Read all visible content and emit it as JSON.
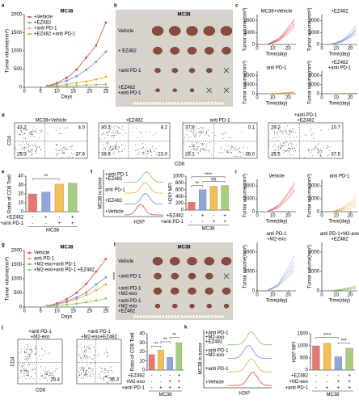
{
  "panel_labels": [
    "a",
    "b",
    "c",
    "d",
    "e",
    "f",
    "g",
    "h",
    "i",
    "j",
    "k"
  ],
  "chart_data": [
    {
      "type": "line",
      "title": "MC38",
      "xlabel": "Days",
      "ylabel": "Tumor volume(mm³)",
      "x": [
        7,
        10,
        13,
        16,
        19,
        22,
        25
      ],
      "xlim": [
        0,
        26
      ],
      "xticks": [
        0,
        5,
        10,
        15,
        20,
        25
      ],
      "ylim": [
        0,
        2000
      ],
      "yticks": [
        0,
        500,
        1000,
        1500,
        2000
      ],
      "markers": true,
      "legend": "upper left",
      "series": [
        {
          "name": "+Vehicle",
          "color": "#e8413c",
          "values": [
            40,
            120,
            260,
            480,
            820,
            1150,
            1780
          ]
        },
        {
          "name": "+EZ482",
          "color": "#6f8fd8",
          "values": [
            30,
            90,
            180,
            300,
            480,
            700,
            980
          ]
        },
        {
          "name": "+anti PD-1",
          "color": "#f2a531",
          "values": [
            25,
            50,
            80,
            120,
            160,
            220,
            290
          ]
        },
        {
          "name": "+EZ482 +anti PD-1",
          "color": "#8cc460",
          "values": [
            20,
            30,
            40,
            50,
            60,
            70,
            80
          ]
        }
      ]
    },
    {
      "type": "line",
      "title": "MC38+Vehicle",
      "title_color": "#e8413c",
      "color": "#e8413c",
      "xlabel": "Time(day)",
      "ylabel": "Tumor volume(mm³)",
      "x": [
        7,
        10,
        14,
        17,
        21,
        24
      ],
      "xlim": [
        0,
        25
      ],
      "xticks": [
        0,
        10,
        20
      ],
      "ylim": [
        0,
        2500
      ],
      "yticks": [
        0,
        1000,
        2000
      ],
      "series": [
        {
          "values": [
            50,
            180,
            450,
            850,
            1500,
            2200
          ]
        },
        {
          "values": [
            40,
            150,
            380,
            700,
            1250,
            1800
          ]
        },
        {
          "values": [
            60,
            220,
            520,
            950,
            1600,
            2000
          ]
        },
        {
          "values": [
            30,
            120,
            300,
            600,
            1000,
            1500
          ]
        },
        {
          "values": [
            45,
            160,
            400,
            750,
            1300,
            1700
          ]
        }
      ]
    },
    {
      "type": "line",
      "title": "+EZ482",
      "title_color": "#6f8fd8",
      "color": "#6f8fd8",
      "xlabel": "Time(day)",
      "ylabel": "Tumor volume(mm³)",
      "x": [
        7,
        10,
        14,
        17,
        21,
        24
      ],
      "xlim": [
        0,
        25
      ],
      "xticks": [
        0,
        10,
        20
      ],
      "ylim": [
        0,
        2500
      ],
      "yticks": [
        0,
        1000,
        2000
      ],
      "series": [
        {
          "values": [
            40,
            120,
            300,
            550,
            900,
            1300
          ]
        },
        {
          "values": [
            30,
            100,
            250,
            450,
            750,
            1100
          ]
        },
        {
          "values": [
            50,
            150,
            350,
            650,
            1100,
            1600
          ]
        },
        {
          "values": [
            35,
            90,
            200,
            400,
            650,
            900
          ]
        },
        {
          "values": [
            45,
            130,
            280,
            500,
            850,
            1200
          ]
        }
      ]
    },
    {
      "type": "line",
      "title": "anti PD-1",
      "title_color": "#f2a531",
      "color": "#f2a531",
      "xlabel": "Time(day)",
      "ylabel": "Tumor volume(mm³)",
      "x": [
        7,
        10,
        14,
        17,
        21,
        24
      ],
      "xlim": [
        0,
        25
      ],
      "xticks": [
        0,
        10,
        20
      ],
      "ylim": [
        0,
        2500
      ],
      "yticks": [
        0,
        1000,
        2000
      ],
      "series": [
        {
          "values": [
            20,
            40,
            60,
            90,
            120,
            160
          ]
        },
        {
          "values": [
            15,
            30,
            50,
            70,
            100,
            140
          ]
        },
        {
          "values": [
            25,
            45,
            70,
            110,
            150,
            200
          ]
        },
        {
          "values": [
            20,
            35,
            55,
            80,
            110,
            130
          ]
        }
      ]
    },
    {
      "type": "line",
      "title": [
        "+EZ482",
        "+anti PD-1"
      ],
      "title_color": "#8cc460",
      "color": "#8cc460",
      "xlabel": "Time(day)",
      "ylabel": "Tumor volume(mm³)",
      "x": [
        7,
        10,
        14,
        17,
        21,
        24
      ],
      "xlim": [
        0,
        25
      ],
      "xticks": [
        0,
        10,
        20
      ],
      "ylim": [
        0,
        2500
      ],
      "yticks": [
        0,
        1000,
        2000
      ],
      "series": [
        {
          "values": [
            15,
            25,
            35,
            45,
            55,
            70
          ]
        },
        {
          "values": [
            10,
            20,
            30,
            40,
            50,
            60
          ]
        },
        {
          "values": [
            20,
            30,
            45,
            55,
            65,
            80
          ]
        }
      ]
    },
    {
      "type": "bar",
      "ylabel": "Ratio of CD8 Tcell",
      "values": [
        20,
        22,
        31,
        32
      ],
      "colors": [
        "#e8766f",
        "#8ea6dc",
        "#f5c04e",
        "#a3cf7e"
      ],
      "ylim": [
        0,
        40
      ],
      "yticks": [
        0,
        10,
        20,
        30,
        40
      ],
      "annotations": [
        "**"
      ],
      "conditions": [
        {
          "label": "+EZ482",
          "signs": [
            "-",
            "+",
            "-",
            "+"
          ]
        },
        {
          "label": "+anti PD-1",
          "signs": [
            "-",
            "-",
            "+",
            "+"
          ]
        }
      ],
      "group": "MC38"
    },
    {
      "type": "bar",
      "ylabel": "H2Kᵇ MFI",
      "values": [
        230,
        600,
        700,
        720
      ],
      "colors": [
        "#e8766f",
        "#8ea6dc",
        "#f5c04e",
        "#a3cf7e"
      ],
      "ylim": [
        0,
        1000
      ],
      "yticks": [
        0,
        200,
        400,
        600,
        800,
        1000
      ],
      "annotations": [
        "**",
        "****",
        "ns"
      ],
      "conditions": [
        {
          "label": "+EZ482",
          "signs": [
            "-",
            "+",
            "-",
            "+"
          ]
        },
        {
          "label": "+anti PD-1",
          "signs": [
            "-",
            "-",
            "+",
            "+"
          ]
        }
      ],
      "group": "MC38"
    },
    {
      "type": "line",
      "title": "MC38",
      "xlabel": "Days",
      "ylabel": "Tumor volume(mm³)",
      "x": [
        7,
        10,
        13,
        16,
        19,
        22,
        25
      ],
      "xlim": [
        0,
        26
      ],
      "xticks": [
        0,
        5,
        10,
        15,
        20,
        25
      ],
      "ylim": [
        0,
        2000
      ],
      "yticks": [
        0,
        500,
        1000,
        1500,
        2000
      ],
      "markers": true,
      "legend": "upper left",
      "annotations": [
        "****",
        "***"
      ],
      "series": [
        {
          "name": "Vehicle",
          "color": "#e8413c",
          "values": [
            40,
            130,
            280,
            500,
            820,
            1250,
            1700
          ]
        },
        {
          "name": "anti PD-1",
          "color": "#f2a531",
          "values": [
            35,
            90,
            170,
            280,
            430,
            600,
            800
          ]
        },
        {
          "name": "+M2-exo+anti PD-1",
          "color": "#6f8fd8",
          "values": [
            35,
            100,
            200,
            340,
            520,
            800,
            1050
          ]
        },
        {
          "name": "+M2-exo+anti PD-1 +EZ482",
          "color": "#8cc460",
          "values": [
            25,
            50,
            80,
            120,
            170,
            230,
            300
          ]
        }
      ]
    },
    {
      "type": "line",
      "title": "Vehicle",
      "title_color": "#e8413c",
      "color": "#e8413c",
      "xlabel": "Time(day)",
      "ylabel": "Tumor volume(mm³)",
      "x": [
        7,
        10,
        14,
        17,
        21,
        24
      ],
      "xlim": [
        0,
        25
      ],
      "xticks": [
        0,
        10,
        20
      ],
      "ylim": [
        0,
        2500
      ],
      "yticks": [
        0,
        1000,
        2000
      ],
      "series": [
        {
          "values": [
            50,
            200,
            480,
            900,
            1500,
            2100
          ]
        },
        {
          "values": [
            40,
            160,
            400,
            750,
            1250,
            1800
          ]
        },
        {
          "values": [
            60,
            230,
            550,
            1000,
            1650,
            2300
          ]
        },
        {
          "values": [
            35,
            130,
            320,
            650,
            1100,
            1600
          ]
        }
      ]
    },
    {
      "type": "line",
      "title": "anti PD-1",
      "title_color": "#f2a531",
      "color": "#f2a531",
      "xlabel": "Time(day)",
      "ylabel": "Tumor volume(mm³)",
      "x": [
        7,
        10,
        14,
        17,
        21,
        24
      ],
      "xlim": [
        0,
        25
      ],
      "xticks": [
        0,
        10,
        20
      ],
      "ylim": [
        0,
        2500
      ],
      "yticks": [
        0,
        1000,
        2000
      ],
      "series": [
        {
          "values": [
            30,
            100,
            250,
            500,
            800,
            1200
          ]
        },
        {
          "values": [
            20,
            60,
            150,
            300,
            500,
            700
          ]
        },
        {
          "values": [
            25,
            80,
            200,
            400,
            650,
            900
          ]
        },
        {
          "values": [
            15,
            40,
            90,
            180,
            300,
            450
          ]
        }
      ]
    },
    {
      "type": "line",
      "title": [
        "anti PD-1",
        "+M2-exo"
      ],
      "title_color": "#6f8fd8",
      "color": "#6f8fd8",
      "xlabel": "Time(day)",
      "ylabel": "Tumor volume(mm³)",
      "x": [
        7,
        10,
        14,
        17,
        21,
        24
      ],
      "xlim": [
        0,
        25
      ],
      "xticks": [
        0,
        10,
        20
      ],
      "ylim": [
        0,
        2500
      ],
      "yticks": [
        0,
        1000,
        2000
      ],
      "series": [
        {
          "values": [
            40,
            150,
            350,
            700,
            1100,
            1500
          ]
        },
        {
          "values": [
            30,
            100,
            250,
            500,
            800,
            1100
          ]
        },
        {
          "values": [
            50,
            180,
            400,
            800,
            1300,
            1800
          ]
        },
        {
          "values": [
            35,
            120,
            300,
            600,
            950,
            1300
          ]
        }
      ]
    },
    {
      "type": "line",
      "title": [
        "anti PD-1+M2-exo",
        "+EZ482"
      ],
      "title_color": "#8cc460",
      "color": "#8cc460",
      "xlabel": "Time(day)",
      "ylabel": "Tumor volume(mm³)",
      "x": [
        7,
        10,
        14,
        17,
        21,
        24
      ],
      "xlim": [
        0,
        25
      ],
      "xticks": [
        0,
        10,
        20
      ],
      "ylim": [
        0,
        2500
      ],
      "yticks": [
        0,
        1000,
        2000
      ],
      "series": [
        {
          "values": [
            20,
            40,
            70,
            110,
            160,
            220
          ]
        },
        {
          "values": [
            15,
            30,
            50,
            80,
            120,
            170
          ]
        },
        {
          "values": [
            25,
            50,
            90,
            140,
            200,
            280
          ]
        },
        {
          "values": [
            10,
            25,
            40,
            60,
            90,
            120
          ]
        }
      ]
    },
    {
      "type": "bar",
      "ylabel": "Ratio of CD8 Tcell",
      "values": [
        17,
        22,
        14,
        30
      ],
      "colors": [
        "#e8766f",
        "#f5c04e",
        "#8ea6dc",
        "#a3cf7e"
      ],
      "ylim": [
        0,
        40
      ],
      "yticks": [
        0,
        10,
        20,
        30,
        40
      ],
      "annotations": [
        "**",
        "**",
        "**"
      ],
      "conditions": [
        {
          "label": "+EZ482",
          "signs": [
            "-",
            "-",
            "-",
            "+"
          ]
        },
        {
          "label": "+M2-exo",
          "signs": [
            "-",
            "-",
            "+",
            "+"
          ]
        },
        {
          "label": "+anti PD-1",
          "signs": [
            "-",
            "+",
            "+",
            "+"
          ]
        }
      ],
      "group": "MC38"
    },
    {
      "type": "bar",
      "ylabel": "H2Kᵇ MFI",
      "values": [
        1000,
        1100,
        550,
        900
      ],
      "colors": [
        "#e8766f",
        "#f5c04e",
        "#8ea6dc",
        "#a3cf7e"
      ],
      "ylim": [
        0,
        1500
      ],
      "yticks": [
        0,
        500,
        1000,
        1500
      ],
      "annotations": [
        "****",
        "***"
      ],
      "conditions": [
        {
          "label": "+EZ482",
          "signs": [
            "-",
            "-",
            "-",
            "+"
          ]
        },
        {
          "label": "+M2-exo",
          "signs": [
            "-",
            "-",
            "+",
            "+"
          ]
        },
        {
          "label": "+anti PD-1",
          "signs": [
            "-",
            "+",
            "+",
            "+"
          ]
        }
      ],
      "group": "MC38"
    }
  ],
  "tumor_images": [
    {
      "title": "MC38",
      "rows": [
        [
          "Vehicle"
        ],
        [
          "+ EZ482"
        ],
        [
          "+anti PD-1"
        ],
        [
          "+EZ482",
          "+anti PD-1"
        ]
      ],
      "colors": [
        "#e8413c",
        "#6f8fd8",
        "#f2a531",
        "#8cc460"
      ]
    },
    {
      "title": "MC38",
      "rows": [
        [
          "Vehicle"
        ],
        [
          "+anti PD-1"
        ],
        [
          "+anti PD-1",
          "+M2-exo"
        ],
        [
          "+anti PD-1",
          "+M2-exo",
          "+EZ482"
        ]
      ],
      "colors": [
        "#e8413c",
        "#f2a531",
        "#6f8fd8",
        "#8cc460"
      ]
    }
  ],
  "flow_plots": [
    {
      "xlabel": "CD8",
      "ylabel": "CD4",
      "plots": [
        {
          "title": [
            "MC38+Vehicle"
          ],
          "color": "#e8413c",
          "quadrants": {
            "top_left": "43.2",
            "top_right": "4.0",
            "bottom_left": "25.3",
            "bottom_right": "27.6"
          }
        },
        {
          "title": [
            "+EZ482"
          ],
          "color": "#6f8fd8",
          "quadrants": {
            "top_left": "30.2",
            "top_right": "8.2",
            "bottom_left": "38.6",
            "bottom_right": "23.0"
          }
        },
        {
          "title": [
            "anti PD-1"
          ],
          "color": "#f2a531",
          "quadrants": {
            "top_left": "37.8",
            "top_right": "0.1",
            "bottom_left": "23.1",
            "bottom_right": "36.0"
          }
        },
        {
          "title": [
            "+anti PD-1",
            "+EZ482"
          ],
          "color": "#8cc460",
          "quadrants": {
            "top_left": "26.2",
            "top_right": "10.7",
            "bottom_left": "25.5",
            "bottom_right": "37.5"
          }
        }
      ]
    },
    {
      "xlabel": "CD8",
      "ylabel": "CD4",
      "plots": [
        {
          "title": [
            "+anti PD-1",
            "+M2-exo"
          ],
          "color": "#000000",
          "quadrants": {
            "bottom_right": "20.4"
          }
        },
        {
          "title": [
            "+anti PD-1",
            "+M2-exo+EZ482"
          ],
          "color": "#000000",
          "quadrants": {
            "bottom_right": "36.3"
          }
        }
      ]
    }
  ],
  "histograms": [
    {
      "ylabel": "MC38 in tumor",
      "xlabel": "H2Kᵇ",
      "labels": [
        [
          "+anti PD-1",
          "+EZ482"
        ],
        [
          "anti PD-1"
        ],
        [
          "+EZ482"
        ],
        [
          "+Vehicle"
        ]
      ],
      "colors": [
        "#8cc460",
        "#f2a531",
        "#6f8fd8",
        "#e8413c"
      ]
    },
    {
      "ylabel": "MC38 in tumor",
      "xlabel": "H2Kᵇ",
      "labels": [
        [
          "+anti PD-1",
          "+M2-exo",
          "+EZ482"
        ],
        [
          "+anti PD-1",
          "+M2-exo"
        ],
        [
          "+anti PD-1"
        ],
        [
          "+Vehicle"
        ]
      ],
      "colors": [
        "#8cc460",
        "#6f8fd8",
        "#f2a531",
        "#e8413c"
      ]
    }
  ]
}
